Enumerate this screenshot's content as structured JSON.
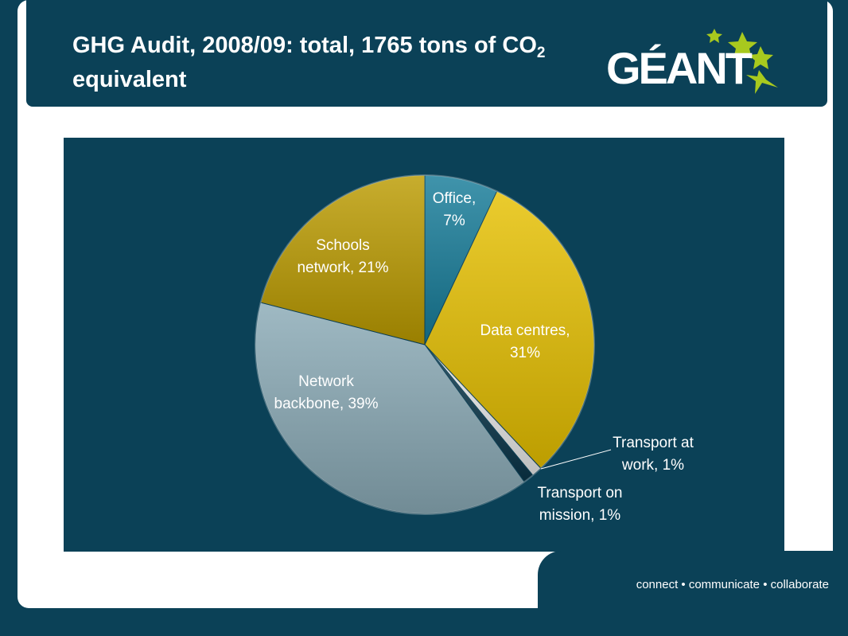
{
  "slide": {
    "title_main": "GHG Audit, 2008/09: total, 1765 tons of CO",
    "title_sub": "2",
    "title_end": " equivalent",
    "logo_text": "GÉANT",
    "tagline": "connect • communicate • collaborate"
  },
  "colors": {
    "background": "#0b4157",
    "panel": "#ffffff",
    "logo_star": "#a8c91e"
  },
  "chart_data": {
    "type": "pie",
    "title": "",
    "slices": [
      {
        "label": "Office,",
        "label2": "7%",
        "value": 7,
        "color": "#167c99"
      },
      {
        "label": "Data centres,",
        "label2": "31%",
        "value": 31,
        "color": "#e6c000"
      },
      {
        "label": "Transport at",
        "label2": "work, 1%",
        "value": 1,
        "color": "#e8e8e8"
      },
      {
        "label": "Transport on",
        "label2": "mission, 1%",
        "value": 1,
        "color": "#0a3448"
      },
      {
        "label": "Network",
        "label2": "backbone, 39%",
        "value": 39,
        "color": "#8aaab6"
      },
      {
        "label": "Schools",
        "label2": "network, 21%",
        "value": 21,
        "color": "#bb9b00"
      }
    ]
  }
}
